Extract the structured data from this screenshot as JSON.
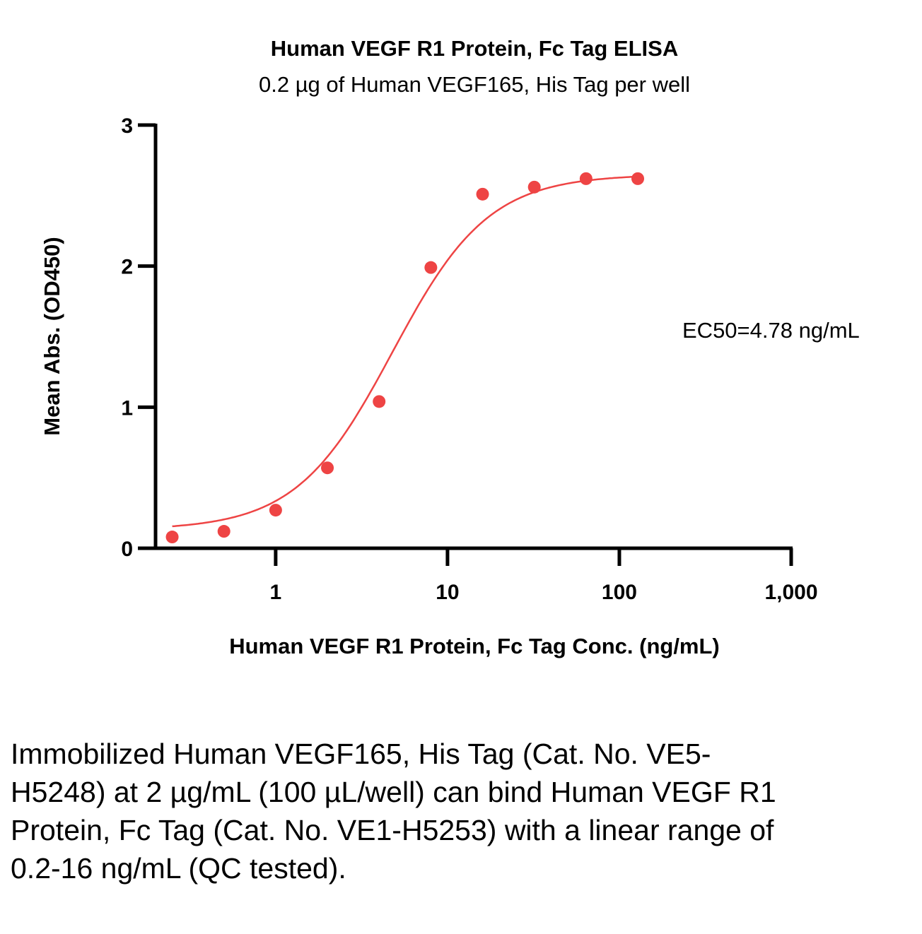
{
  "chart_data": {
    "type": "scatter",
    "title": "Human VEGF R1 Protein, Fc Tag ELISA",
    "subtitle": "0.2 µg of Human VEGF165, His Tag per well",
    "xlabel": "Human VEGF R1 Protein, Fc Tag Conc. (ng/mL)",
    "ylabel": "Mean Abs. (OD450)",
    "xscale": "log",
    "xlim": [
      0.2,
      1000
    ],
    "ylim": [
      0,
      3
    ],
    "xticks": [
      1,
      10,
      100,
      1000
    ],
    "xtick_labels": [
      "1",
      "10",
      "100",
      "1,000"
    ],
    "yticks": [
      0,
      1,
      2,
      3
    ],
    "ytick_labels": [
      "0",
      "1",
      "2",
      "3"
    ],
    "grid": false,
    "color": "#EE4444",
    "x": [
      0.25,
      0.5,
      1,
      2,
      4,
      8,
      16,
      32,
      64,
      128
    ],
    "y": [
      0.08,
      0.12,
      0.27,
      0.57,
      1.04,
      1.99,
      2.51,
      2.56,
      2.62,
      2.62
    ],
    "fit": {
      "model": "4PL",
      "bottom": 0.13,
      "top": 2.65,
      "ec50": 4.78,
      "hill": 1.55
    },
    "annotation": "EC50=4.78 ng/mL"
  },
  "caption": "Immobilized Human VEGF165, His Tag (Cat. No. VE5-H5248) at 2 µg/mL (100 µL/well) can bind Human VEGF R1 Protein, Fc Tag (Cat. No. VE1-H5253) with a linear range of 0.2-16 ng/mL (QC tested)."
}
